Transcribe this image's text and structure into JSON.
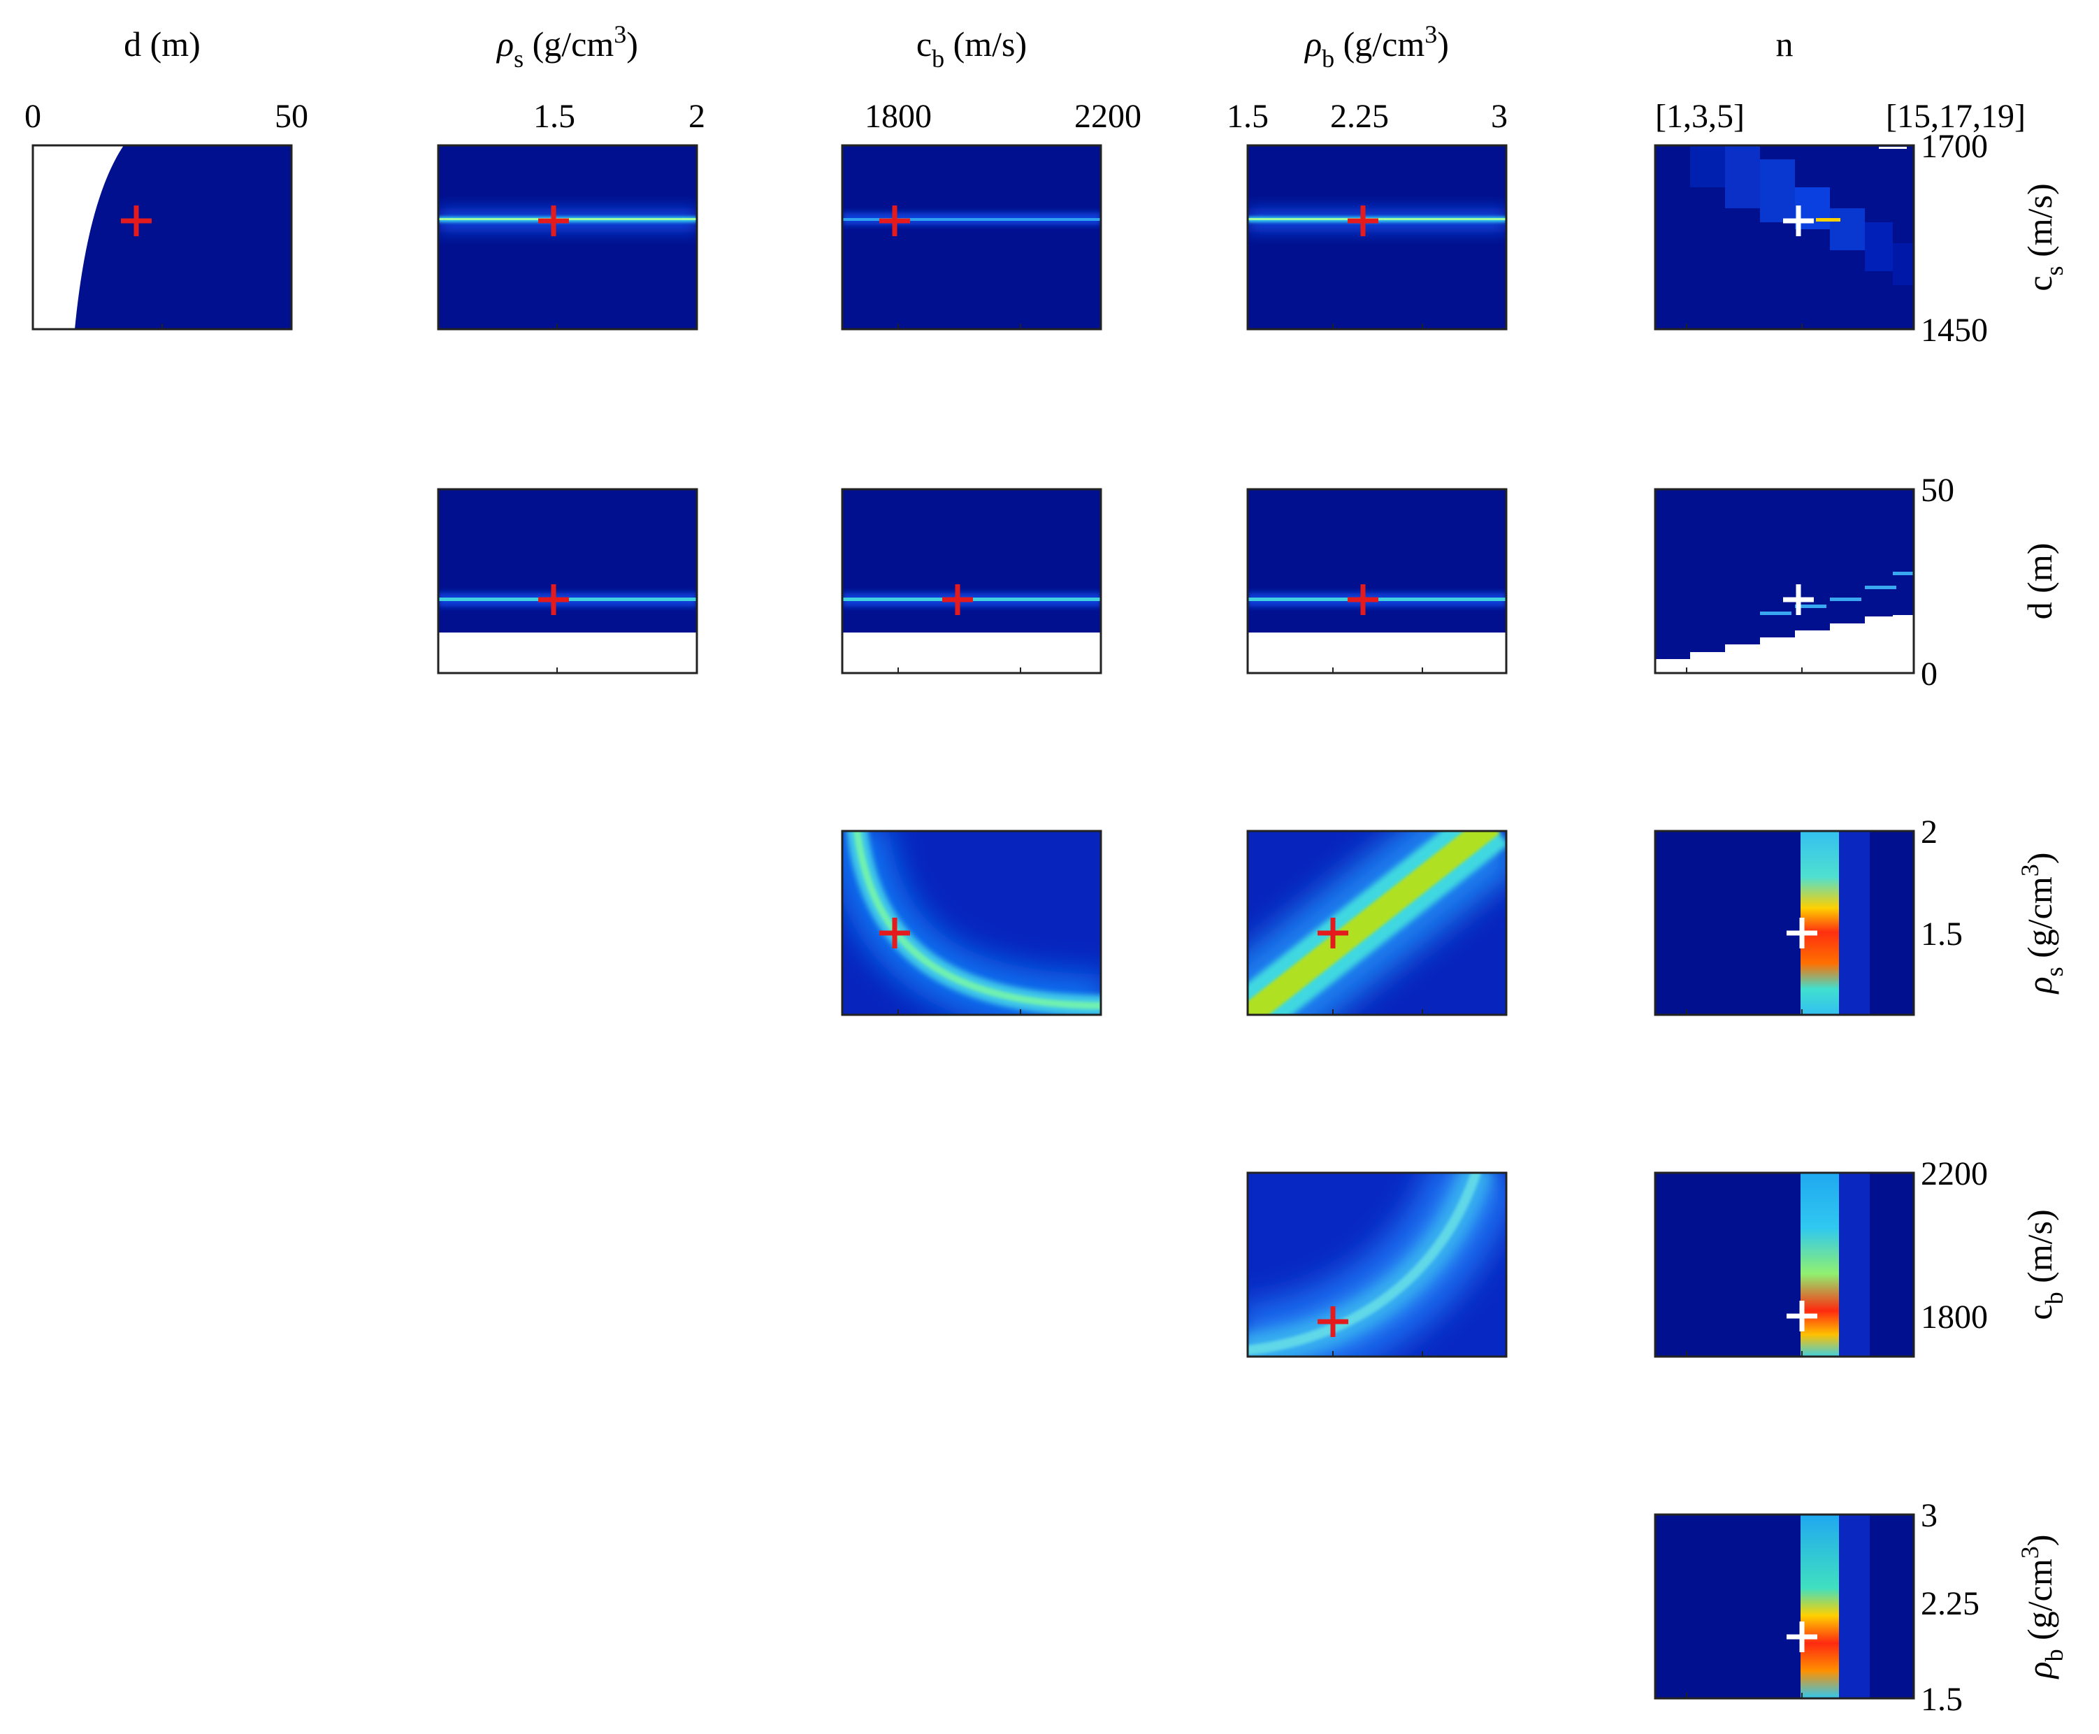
{
  "chart_data": {
    "type": "heatmap",
    "description_type": "pairwise posterior marginal density matrix",
    "colormap": "jet",
    "true_marker_color_red": "#e41a1c",
    "true_marker_color_white": "#ffffff",
    "columns": [
      {
        "id": "d",
        "label_main": "d (m)",
        "label_sub": "",
        "label_tail": "",
        "ticks": [
          "0",
          "50"
        ],
        "range": [
          0,
          50
        ]
      },
      {
        "id": "rho_s",
        "label_main": "ρ",
        "label_sub": "s",
        "label_tail": " (g/cm",
        "label_sup": "3",
        "label_close": ")",
        "ticks": [
          "1.5",
          "2"
        ],
        "range": [
          1,
          2
        ]
      },
      {
        "id": "c_b",
        "label_main": "c",
        "label_sub": "b",
        "label_tail": " (m/s)",
        "ticks": [
          "1800",
          "2200"
        ],
        "range": [
          1700,
          2200
        ]
      },
      {
        "id": "rho_b",
        "label_main": "ρ",
        "label_sub": "b",
        "label_tail": " (g/cm",
        "label_sup": "3",
        "label_close": ")",
        "ticks": [
          "1.5",
          "2.25",
          "3"
        ],
        "range": [
          1.5,
          3
        ]
      },
      {
        "id": "n",
        "label_main": "n",
        "label_sub": "",
        "label_tail": "",
        "ticks": [
          "[1,3,5]",
          "[15,17,19]"
        ],
        "range": null
      }
    ],
    "rows": [
      {
        "id": "c_s",
        "label_main": "c",
        "label_sub": "s",
        "label_tail": " (m/s)",
        "ticks": [
          "1700",
          "1450"
        ],
        "range": [
          1450,
          1700
        ]
      },
      {
        "id": "d",
        "label_main": "d (m)",
        "label_sub": "",
        "label_tail": "",
        "ticks": [
          "50",
          "0"
        ],
        "range": [
          0,
          50
        ]
      },
      {
        "id": "rho_s",
        "label_main": "ρ",
        "label_sub": "s",
        "label_tail": " (g/cm",
        "label_sup": "3",
        "label_close": ")",
        "ticks": [
          "2",
          "1.5"
        ],
        "range": [
          1,
          2
        ]
      },
      {
        "id": "c_b",
        "label_main": "c",
        "label_sub": "b",
        "label_tail": " (m/s)",
        "ticks": [
          "2200",
          "1800"
        ],
        "range": [
          1700,
          2200
        ]
      },
      {
        "id": "rho_b",
        "label_main": "ρ",
        "label_sub": "b",
        "label_tail": " (g/cm",
        "label_sup": "3",
        "label_close": ")",
        "ticks": [
          "3",
          "2.25",
          "1.5"
        ],
        "range": [
          1.5,
          3
        ]
      }
    ],
    "true_values": {
      "c_s": 1600,
      "d": 20,
      "rho_s": 1.5,
      "c_b": 1800,
      "rho_b": 2.1,
      "n": "[11,13,15]"
    },
    "panels": [
      {
        "row": 0,
        "col": 0,
        "pattern": "d_cs_boundary",
        "marker": "red"
      },
      {
        "row": 0,
        "col": 1,
        "pattern": "hline_cs",
        "marker": "red"
      },
      {
        "row": 0,
        "col": 2,
        "pattern": "hline_cs_thin",
        "marker": "red"
      },
      {
        "row": 0,
        "col": 3,
        "pattern": "hline_cs",
        "marker": "red"
      },
      {
        "row": 0,
        "col": 4,
        "pattern": "n_cs",
        "marker": "white"
      },
      {
        "row": 1,
        "col": 1,
        "pattern": "hline_d",
        "marker": "red"
      },
      {
        "row": 1,
        "col": 2,
        "pattern": "hline_d",
        "marker": "red"
      },
      {
        "row": 1,
        "col": 3,
        "pattern": "hline_d",
        "marker": "red"
      },
      {
        "row": 1,
        "col": 4,
        "pattern": "n_d_staircase",
        "marker": "white"
      },
      {
        "row": 2,
        "col": 2,
        "pattern": "curve_rhos_cb",
        "marker": "red"
      },
      {
        "row": 2,
        "col": 3,
        "pattern": "diag_rhos_rhob",
        "marker": "red"
      },
      {
        "row": 2,
        "col": 4,
        "pattern": "n_column",
        "marker": "white"
      },
      {
        "row": 3,
        "col": 3,
        "pattern": "curve_cb_rhob",
        "marker": "red"
      },
      {
        "row": 3,
        "col": 4,
        "pattern": "n_column",
        "marker": "white"
      },
      {
        "row": 4,
        "col": 4,
        "pattern": "n_column",
        "marker": "white"
      }
    ]
  }
}
